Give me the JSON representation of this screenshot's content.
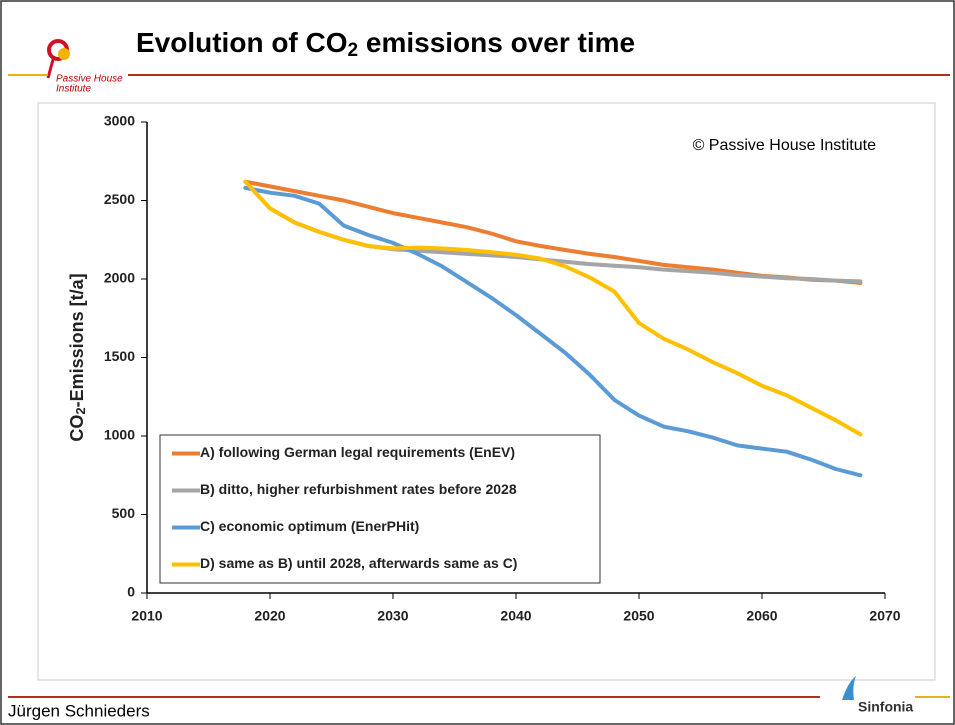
{
  "header": {
    "title_parts": [
      "Evolution of CO",
      "2",
      " emissions over time"
    ],
    "logo_text": [
      "Passive House",
      "Institute"
    ]
  },
  "footer": {
    "author": "Jürgen Schnieders",
    "logo": "Sinfonia"
  },
  "chart_data": {
    "type": "line",
    "ylabel_parts": [
      "CO",
      "2",
      "-Emissions [t/a]"
    ],
    "annotation": "© Passive House Institute",
    "x": [
      2018,
      2020,
      2022,
      2024,
      2026,
      2028,
      2030,
      2032,
      2034,
      2036,
      2038,
      2040,
      2042,
      2044,
      2046,
      2048,
      2050,
      2052,
      2054,
      2056,
      2058,
      2060,
      2062,
      2064,
      2066,
      2068
    ],
    "series": [
      {
        "name": "A) following German legal requirements (EnEV)",
        "color": "#ed7d31",
        "values": [
          2620,
          2590,
          2560,
          2530,
          2500,
          2460,
          2420,
          2390,
          2360,
          2330,
          2290,
          2240,
          2210,
          2185,
          2160,
          2140,
          2115,
          2090,
          2075,
          2060,
          2040,
          2020,
          2010,
          1995,
          1990,
          1975
        ]
      },
      {
        "name": "B) ditto, higher refurbishment rates before 2028",
        "color": "#a5a5a5",
        "values": [
          2620,
          2450,
          2360,
          2300,
          2250,
          2210,
          2190,
          2180,
          2170,
          2160,
          2150,
          2140,
          2125,
          2110,
          2095,
          2085,
          2075,
          2060,
          2050,
          2040,
          2025,
          2015,
          2005,
          2000,
          1990,
          1985
        ]
      },
      {
        "name": "C) economic optimum (EnerPHit)",
        "color": "#5b9bd5",
        "values": [
          2580,
          2550,
          2530,
          2480,
          2340,
          2280,
          2230,
          2160,
          2080,
          1980,
          1880,
          1770,
          1650,
          1530,
          1390,
          1230,
          1130,
          1060,
          1030,
          990,
          940,
          920,
          900,
          850,
          790,
          750
        ]
      },
      {
        "name": "D) same as B) until 2028, afterwards same as C)",
        "color": "#ffc000",
        "values": [
          2620,
          2450,
          2360,
          2300,
          2250,
          2210,
          2195,
          2200,
          2195,
          2185,
          2170,
          2155,
          2130,
          2080,
          2010,
          1920,
          1720,
          1620,
          1550,
          1470,
          1400,
          1320,
          1260,
          1180,
          1100,
          1010
        ]
      }
    ],
    "xlim": [
      2010,
      2070
    ],
    "xticks": [
      2010,
      2020,
      2030,
      2040,
      2050,
      2060,
      2070
    ],
    "ylim": [
      0,
      3000
    ],
    "yticks": [
      0,
      500,
      1000,
      1500,
      2000,
      2500,
      3000
    ],
    "grid": false,
    "legend": "lower left"
  }
}
